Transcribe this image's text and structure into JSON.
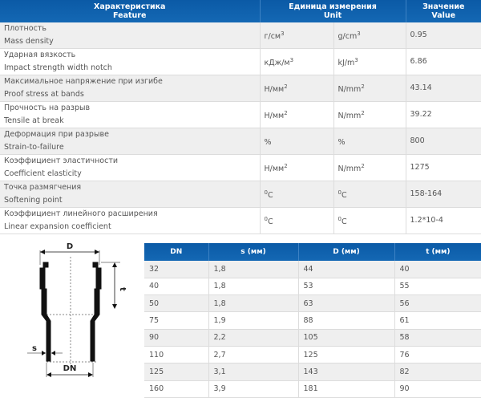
{
  "spec_table": {
    "headers": {
      "feature_ru": "Характеристика",
      "feature_en": "Feature",
      "unit_ru": "Единица измерения",
      "unit_en": "Unit",
      "value_ru": "Значение",
      "value_en": "Value"
    },
    "rows": [
      {
        "ru": "Плотность",
        "en": "Mass density",
        "unit_ru": "г/см",
        "unit_ru_sup": "3",
        "unit_en": "g/cm",
        "unit_en_sup": "3",
        "value": "0.95"
      },
      {
        "ru": "Ударная вязкость",
        "en": "Impact strength width notch",
        "unit_ru": "кДж/м",
        "unit_ru_sup": "3",
        "unit_en": "kJ/m",
        "unit_en_sup": "3",
        "value": "6.86"
      },
      {
        "ru": "Максимальное напряжение при изгибе",
        "en": "Proof stress at bands",
        "unit_ru": "Н/мм",
        "unit_ru_sup": "2",
        "unit_en": "N/mm",
        "unit_en_sup": "2",
        "value": "43.14"
      },
      {
        "ru": "Прочность на разрыв",
        "en": "Tensile at break",
        "unit_ru": "Н/мм",
        "unit_ru_sup": "2",
        "unit_en": "N/mm",
        "unit_en_sup": "2",
        "value": "39.22"
      },
      {
        "ru": "Деформация при разрыве",
        "en": "Strain-to-failure",
        "unit_ru": "%",
        "unit_ru_sup": "",
        "unit_en": "%",
        "unit_en_sup": "",
        "value": "800"
      },
      {
        "ru": "Коэффициент эластичности",
        "en": "Coefficient elasticity",
        "unit_ru": "Н/мм",
        "unit_ru_sup": "2",
        "unit_en": "N/mm",
        "unit_en_sup": "2",
        "value": "1275"
      },
      {
        "ru": "Точка размягчения",
        "en": "Softening point",
        "unit_ru": "C",
        "unit_ru_sup": "0",
        "unit_en": "C",
        "unit_en_sup": "0",
        "value": "158-164"
      },
      {
        "ru": "Коэффициент линейного расширения",
        "en": "Linear expansion coefficient",
        "unit_ru": "C",
        "unit_ru_sup": "0",
        "unit_en": "C",
        "unit_en_sup": "0",
        "value": "1.2*10-4"
      }
    ]
  },
  "diagram": {
    "label_D": "D",
    "label_t": "t",
    "label_s": "s",
    "label_DN": "DN"
  },
  "dims_table": {
    "headers": [
      "DN",
      "s (мм)",
      "D (мм)",
      "t (мм)"
    ],
    "rows": [
      [
        "32",
        "1,8",
        "44",
        "40"
      ],
      [
        "40",
        "1,8",
        "53",
        "55"
      ],
      [
        "50",
        "1,8",
        "63",
        "56"
      ],
      [
        "75",
        "1,9",
        "88",
        "61"
      ],
      [
        "90",
        "2,2",
        "105",
        "58"
      ],
      [
        "110",
        "2,7",
        "125",
        "76"
      ],
      [
        "125",
        "3,1",
        "143",
        "82"
      ],
      [
        "160",
        "3,9",
        "181",
        "90"
      ]
    ]
  }
}
